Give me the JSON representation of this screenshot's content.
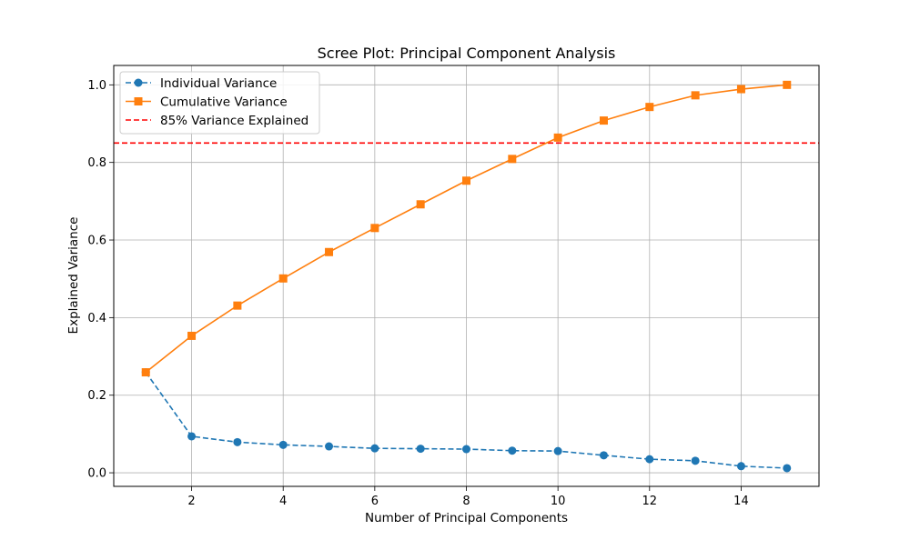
{
  "chart_data": {
    "type": "line",
    "title": "Scree Plot: Principal Component Analysis",
    "xlabel": "Number of Principal Components",
    "ylabel": "Explained Variance",
    "xlim": [
      0.3,
      15.7
    ],
    "ylim": [
      -0.035,
      1.05
    ],
    "xticks": [
      2,
      4,
      6,
      8,
      10,
      12,
      14
    ],
    "xtick_labels": [
      "2",
      "4",
      "6",
      "8",
      "10",
      "12",
      "14"
    ],
    "yticks": [
      0.0,
      0.2,
      0.4,
      0.6,
      0.8,
      1.0
    ],
    "ytick_labels": [
      "0.0",
      "0.2",
      "0.4",
      "0.6",
      "0.8",
      "1.0"
    ],
    "grid": true,
    "legend_position": "upper-left",
    "x": [
      1,
      2,
      3,
      4,
      5,
      6,
      7,
      8,
      9,
      10,
      11,
      12,
      13,
      14,
      15
    ],
    "series": [
      {
        "name": "Individual Variance",
        "color": "#1f77b4",
        "linestyle": "dashed",
        "marker": "circle",
        "values": [
          0.259,
          0.094,
          0.079,
          0.072,
          0.068,
          0.063,
          0.062,
          0.061,
          0.057,
          0.056,
          0.045,
          0.035,
          0.031,
          0.017,
          0.012
        ]
      },
      {
        "name": "Cumulative Variance",
        "color": "#ff7f0e",
        "linestyle": "solid",
        "marker": "square",
        "values": [
          0.259,
          0.353,
          0.431,
          0.501,
          0.569,
          0.631,
          0.692,
          0.753,
          0.809,
          0.864,
          0.908,
          0.943,
          0.973,
          0.989,
          1.0
        ]
      }
    ],
    "reference_lines": [
      {
        "name": "85% Variance Explained",
        "orientation": "horizontal",
        "y": 0.85,
        "color": "#ff0000",
        "linestyle": "dashed"
      }
    ]
  }
}
